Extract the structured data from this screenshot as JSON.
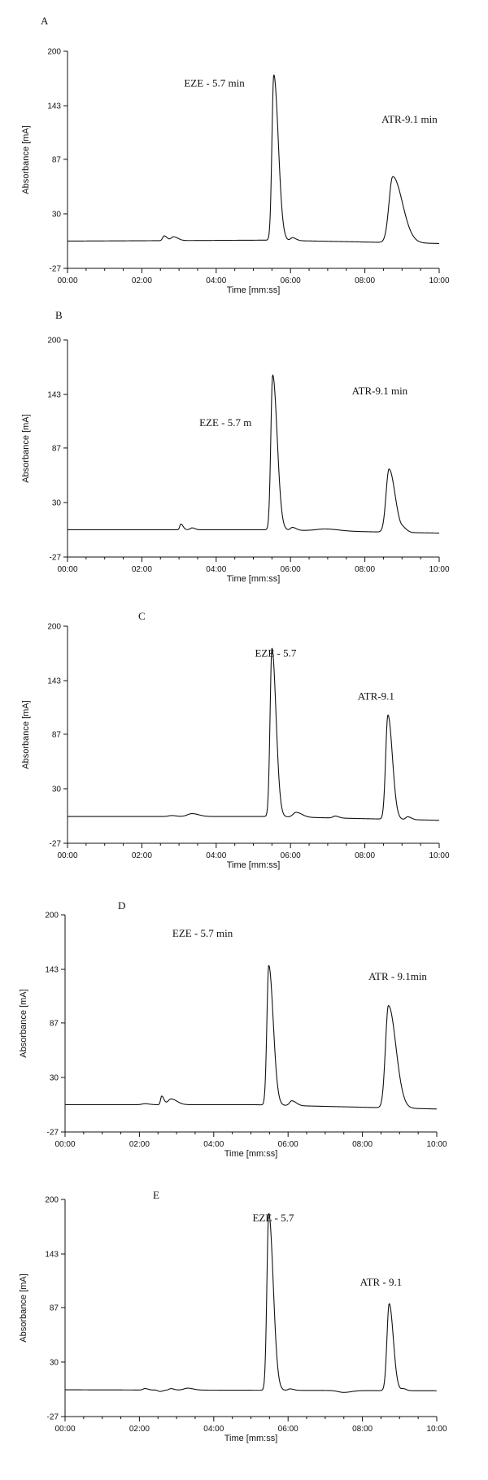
{
  "chart_data": [
    {
      "type": "line",
      "panel_label": "A",
      "xlabel": "Time [mm:ss]",
      "ylabel": "Absorbance [mA]",
      "xlim": [
        0,
        10
      ],
      "ylim": [
        -27,
        200
      ],
      "x_ticks": [
        "00:00",
        "02:00",
        "04:00",
        "06:00",
        "08:00",
        "10:00"
      ],
      "y_ticks": [
        "200",
        "143",
        "87",
        "30",
        "-27"
      ],
      "baseline": [
        [
          0,
          1.5
        ],
        [
          5.4,
          2.5
        ],
        [
          10,
          -1
        ]
      ],
      "peaks": [
        {
          "t": 2.6,
          "h": 5,
          "wl": 0.04,
          "wr": 0.08
        },
        {
          "t": 2.85,
          "h": 4,
          "wl": 0.06,
          "wr": 0.12
        },
        {
          "t": 5.55,
          "h": 173,
          "wl": 0.05,
          "wr": 0.12
        },
        {
          "t": 6.05,
          "h": 3,
          "wl": 0.05,
          "wr": 0.1
        },
        {
          "t": 8.75,
          "h": 69,
          "wl": 0.1,
          "wr": 0.26
        }
      ],
      "annotations": [
        {
          "text": "EZE - 5.7 min",
          "x": 3.95,
          "y": 163
        },
        {
          "text": "ATR-9.1 min",
          "x": 9.2,
          "y": 125
        }
      ]
    },
    {
      "type": "line",
      "panel_label": "B",
      "xlabel": "Time [mm:ss]",
      "ylabel": "Absorbance [mA]",
      "xlim": [
        0,
        10
      ],
      "ylim": [
        -27,
        200
      ],
      "x_ticks": [
        "00:00",
        "02:00",
        "04:00",
        "06:00",
        "08:00",
        "10:00"
      ],
      "y_ticks": [
        "200",
        "143",
        "87",
        "30",
        "-27"
      ],
      "baseline": [
        [
          0,
          1.5
        ],
        [
          5.4,
          1.5
        ],
        [
          10,
          -2
        ]
      ],
      "peaks": [
        {
          "t": 3.05,
          "h": 6,
          "wl": 0.03,
          "wr": 0.06
        },
        {
          "t": 3.35,
          "h": 2,
          "wl": 0.05,
          "wr": 0.08
        },
        {
          "t": 5.52,
          "h": 162,
          "wl": 0.05,
          "wr": 0.12
        },
        {
          "t": 6.05,
          "h": 3,
          "wl": 0.05,
          "wr": 0.1
        },
        {
          "t": 6.95,
          "h": 2,
          "wl": 0.25,
          "wr": 0.35
        },
        {
          "t": 8.65,
          "h": 66,
          "wl": 0.08,
          "wr": 0.16
        },
        {
          "t": 9.05,
          "h": 3,
          "wl": 0.05,
          "wr": 0.1
        }
      ],
      "annotations": [
        {
          "text": "EZE - 5.7 m",
          "x": 4.25,
          "y": 110
        },
        {
          "text": "ATR-9.1 min",
          "x": 8.4,
          "y": 143
        }
      ]
    },
    {
      "type": "line",
      "panel_label": "C",
      "xlabel": "Time [mm:ss]",
      "ylabel": "Absorbance [mA]",
      "xlim": [
        0,
        10
      ],
      "ylim": [
        -27,
        200
      ],
      "x_ticks": [
        "00:00",
        "02:00",
        "04:00",
        "06:00",
        "08:00",
        "10:00"
      ],
      "y_ticks": [
        "200",
        "143",
        "87",
        "30",
        "-27"
      ],
      "baseline": [
        [
          0,
          1
        ],
        [
          5.4,
          1
        ],
        [
          10,
          -3
        ]
      ],
      "peaks": [
        {
          "t": 2.8,
          "h": 1,
          "wl": 0.08,
          "wr": 0.12
        },
        {
          "t": 3.35,
          "h": 3,
          "wl": 0.12,
          "wr": 0.18
        },
        {
          "t": 5.5,
          "h": 176,
          "wl": 0.05,
          "wr": 0.11
        },
        {
          "t": 6.15,
          "h": 5,
          "wl": 0.08,
          "wr": 0.16
        },
        {
          "t": 7.2,
          "h": 2,
          "wl": 0.06,
          "wr": 0.1
        },
        {
          "t": 8.62,
          "h": 109,
          "wl": 0.06,
          "wr": 0.12
        },
        {
          "t": 9.15,
          "h": 3,
          "wl": 0.05,
          "wr": 0.1
        }
      ],
      "annotations": [
        {
          "text": "EZE - 5.7",
          "x": 5.6,
          "y": 168
        },
        {
          "text": "ATR-9.1",
          "x": 8.3,
          "y": 123
        }
      ]
    },
    {
      "type": "line",
      "panel_label": "D",
      "xlabel": "Time [mm:ss]",
      "ylabel": "Absorbance [mA]",
      "xlim": [
        0,
        10
      ],
      "ylim": [
        -27,
        200
      ],
      "x_ticks": [
        "00:00",
        "02:00",
        "04:00",
        "06:00",
        "08:00",
        "10:00"
      ],
      "y_ticks": [
        "200",
        "143",
        "87",
        "30",
        "-27"
      ],
      "baseline": [
        [
          0,
          1.5
        ],
        [
          5.1,
          1.5
        ],
        [
          10,
          -3
        ]
      ],
      "peaks": [
        {
          "t": 2.15,
          "h": 1,
          "wl": 0.08,
          "wr": 0.12
        },
        {
          "t": 2.6,
          "h": 9,
          "wl": 0.03,
          "wr": 0.06
        },
        {
          "t": 2.85,
          "h": 6,
          "wl": 0.08,
          "wr": 0.16
        },
        {
          "t": 5.48,
          "h": 146,
          "wl": 0.05,
          "wr": 0.12
        },
        {
          "t": 6.1,
          "h": 5,
          "wl": 0.06,
          "wr": 0.12
        },
        {
          "t": 8.7,
          "h": 107,
          "wl": 0.08,
          "wr": 0.2
        }
      ],
      "annotations": [
        {
          "text": "EZE - 5.7 min",
          "x": 3.7,
          "y": 177
        },
        {
          "text": "ATR - 9.1min",
          "x": 8.95,
          "y": 132
        }
      ]
    },
    {
      "type": "line",
      "panel_label": "E",
      "xlabel": "Time [mm:ss]",
      "ylabel": "Absorbance [mA]",
      "xlim": [
        0,
        10
      ],
      "ylim": [
        -27,
        200
      ],
      "x_ticks": [
        "00:00",
        "02:00",
        "04:00",
        "06:00",
        "08:00",
        "10:00"
      ],
      "y_ticks": [
        "200",
        "143",
        "87",
        "30",
        "-27"
      ],
      "baseline": [
        [
          0,
          1
        ],
        [
          5.4,
          0.5
        ],
        [
          10,
          0
        ]
      ],
      "peaks": [
        {
          "t": 2.15,
          "h": 1.5,
          "wl": 0.05,
          "wr": 0.08
        },
        {
          "t": 2.55,
          "h": -1.5,
          "wl": 0.05,
          "wr": 0.08
        },
        {
          "t": 2.85,
          "h": 1.5,
          "wl": 0.05,
          "wr": 0.08
        },
        {
          "t": 3.3,
          "h": 2,
          "wl": 0.1,
          "wr": 0.15
        },
        {
          "t": 5.48,
          "h": 185,
          "wl": 0.05,
          "wr": 0.12
        },
        {
          "t": 6.05,
          "h": 1.5,
          "wl": 0.05,
          "wr": 0.1
        },
        {
          "t": 7.5,
          "h": -2,
          "wl": 0.15,
          "wr": 0.2
        },
        {
          "t": 8.72,
          "h": 91,
          "wl": 0.06,
          "wr": 0.11
        },
        {
          "t": 9.1,
          "h": 2,
          "wl": 0.05,
          "wr": 0.08
        }
      ],
      "annotations": [
        {
          "text": "EZE - 5.7",
          "x": 5.6,
          "y": 177
        },
        {
          "text": "ATR - 9.1",
          "x": 8.5,
          "y": 110
        }
      ]
    }
  ]
}
